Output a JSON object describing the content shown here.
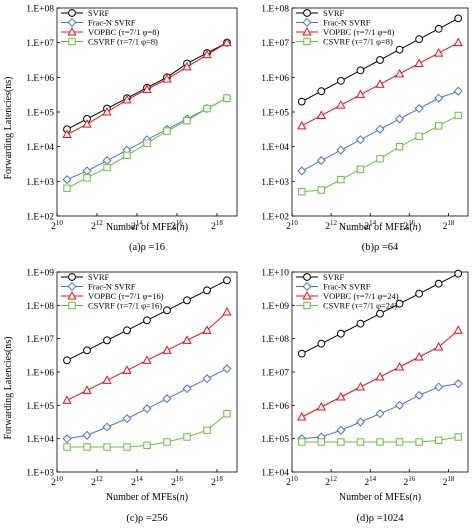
{
  "ylabel": "Forwarding Latencies(ns)",
  "chart_data": [
    {
      "type": "line",
      "caption": "(a)ρ =16",
      "xlabel": "Number of MFEs(n)",
      "x_scale": "log2",
      "y_scale": "log10",
      "xlim": [
        10,
        19
      ],
      "ylim": [
        2,
        8
      ],
      "x_ticks": [
        "2^10",
        "2^12",
        "2^14",
        "2^16",
        "2^18"
      ],
      "y_ticks": [
        "1.E+02",
        "1.E+03",
        "1.E+04",
        "1.E+05",
        "1.E+06",
        "1.E+07",
        "1.E+08"
      ],
      "legend_position": "top-left",
      "x_log2": [
        10.5,
        11.5,
        12.5,
        13.5,
        14.5,
        15.5,
        16.5,
        17.5,
        18.5
      ],
      "series": [
        {
          "name": "SVRF",
          "color": "#000000",
          "marker": "circle",
          "y_log10": [
            4.5,
            4.8,
            5.1,
            5.4,
            5.7,
            6.0,
            6.4,
            6.7,
            7.0
          ]
        },
        {
          "name": "Frac-N SVRF",
          "color": "#4a72c4",
          "marker": "diamond",
          "y_log10": [
            3.05,
            3.3,
            3.6,
            3.9,
            4.2,
            4.5,
            4.8,
            5.1,
            5.4
          ]
        },
        {
          "name": "VOPBC (τ=7/1 φ=8)",
          "color": "#e8101a",
          "marker": "triangle",
          "y_log10": [
            4.35,
            4.65,
            5.0,
            5.35,
            5.65,
            5.95,
            6.3,
            6.65,
            7.0
          ]
        },
        {
          "name": "CSVRF (τ=7/1 φ=8)",
          "color": "#6abf40",
          "marker": "square",
          "y_log10": [
            2.8,
            3.1,
            3.4,
            3.75,
            4.1,
            4.45,
            4.75,
            5.1,
            5.4
          ]
        }
      ]
    },
    {
      "type": "line",
      "caption": "(b)ρ =64",
      "xlabel": "Number of MFEs(n)",
      "x_scale": "log2",
      "y_scale": "log10",
      "xlim": [
        10,
        19
      ],
      "ylim": [
        2,
        8
      ],
      "x_ticks": [
        "2^10",
        "2^12",
        "2^14",
        "2^16",
        "2^18"
      ],
      "y_ticks": [
        "1.E+02",
        "1.E+03",
        "1.E+04",
        "1.E+05",
        "1.E+06",
        "1.E+07",
        "1.E+08"
      ],
      "legend_position": "top-left",
      "x_log2": [
        10.5,
        11.5,
        12.5,
        13.5,
        14.5,
        15.5,
        16.5,
        17.5,
        18.5
      ],
      "series": [
        {
          "name": "SVRF",
          "color": "#000000",
          "marker": "circle",
          "y_log10": [
            5.3,
            5.6,
            5.9,
            6.2,
            6.5,
            6.8,
            7.1,
            7.4,
            7.7
          ]
        },
        {
          "name": "Frac-N SVRF",
          "color": "#4a72c4",
          "marker": "diamond",
          "y_log10": [
            3.3,
            3.6,
            3.9,
            4.2,
            4.5,
            4.8,
            5.1,
            5.4,
            5.6
          ]
        },
        {
          "name": "VOPBC (τ=7/1 φ=8)",
          "color": "#e8101a",
          "marker": "triangle",
          "y_log10": [
            4.6,
            4.9,
            5.2,
            5.5,
            5.8,
            6.1,
            6.4,
            6.7,
            7.0
          ]
        },
        {
          "name": "CSVRF (τ=7/1 φ=8)",
          "color": "#6abf40",
          "marker": "square",
          "y_log10": [
            2.7,
            2.75,
            3.05,
            3.35,
            3.65,
            4.0,
            4.3,
            4.6,
            4.9
          ]
        }
      ]
    },
    {
      "type": "line",
      "caption": "(c)ρ =256",
      "xlabel": "Number of MFEs(n)",
      "x_scale": "log2",
      "y_scale": "log10",
      "xlim": [
        10,
        19
      ],
      "ylim": [
        3,
        9
      ],
      "x_ticks": [
        "2^10",
        "2^12",
        "2^14",
        "2^16",
        "2^18"
      ],
      "y_ticks": [
        "1.E+03",
        "1.E+04",
        "1.E+05",
        "1.E+06",
        "1.E+07",
        "1.E+08",
        "1.E+09"
      ],
      "legend_position": "top-left",
      "x_log2": [
        10.5,
        11.5,
        12.5,
        13.5,
        14.5,
        15.5,
        16.5,
        17.5,
        18.5
      ],
      "series": [
        {
          "name": "SVRF",
          "color": "#000000",
          "marker": "circle",
          "y_log10": [
            6.35,
            6.65,
            6.95,
            7.25,
            7.55,
            7.85,
            8.15,
            8.45,
            8.75
          ]
        },
        {
          "name": "Frac-N SVRF",
          "color": "#4a72c4",
          "marker": "diamond",
          "y_log10": [
            4.0,
            4.1,
            4.35,
            4.6,
            4.9,
            5.2,
            5.5,
            5.8,
            6.1
          ]
        },
        {
          "name": "VOPBC (τ=7/1 φ=16)",
          "color": "#e8101a",
          "marker": "triangle",
          "y_log10": [
            5.15,
            5.45,
            5.75,
            6.05,
            6.35,
            6.65,
            6.95,
            7.25,
            7.8
          ]
        },
        {
          "name": "CSVRF (τ=7/1 φ=16)",
          "color": "#6abf40",
          "marker": "square",
          "y_log10": [
            3.75,
            3.75,
            3.75,
            3.75,
            3.8,
            3.9,
            4.05,
            4.25,
            4.75
          ]
        }
      ]
    },
    {
      "type": "line",
      "caption": "(d)ρ =1024",
      "xlabel": "Number of MFEs(n)",
      "x_scale": "log2",
      "y_scale": "log10",
      "xlim": [
        10,
        19
      ],
      "ylim": [
        4,
        10
      ],
      "x_ticks": [
        "2^10",
        "2^12",
        "2^14",
        "2^16",
        "2^18"
      ],
      "y_ticks": [
        "1.E+04",
        "1.E+05",
        "1.E+06",
        "1.E+07",
        "1.E+08",
        "1.E+09",
        "1.E+10"
      ],
      "legend_position": "top-left",
      "x_log2": [
        10.5,
        11.5,
        12.5,
        13.5,
        14.5,
        15.5,
        16.5,
        17.5,
        18.5
      ],
      "series": [
        {
          "name": "SVRF",
          "color": "#000000",
          "marker": "circle",
          "y_log10": [
            7.55,
            7.85,
            8.15,
            8.45,
            8.75,
            9.05,
            9.35,
            9.65,
            9.95
          ]
        },
        {
          "name": "Frac-N SVRF",
          "color": "#4a72c4",
          "marker": "diamond",
          "y_log10": [
            5.0,
            5.05,
            5.25,
            5.5,
            5.75,
            6.0,
            6.3,
            6.55,
            6.65
          ]
        },
        {
          "name": "VOPBC (τ=7/1 φ=24)",
          "color": "#e8101a",
          "marker": "triangle",
          "y_log10": [
            5.65,
            5.95,
            6.25,
            6.55,
            6.85,
            7.15,
            7.45,
            7.75,
            8.25
          ]
        },
        {
          "name": "CSVRF (τ=7/1 φ=24)",
          "color": "#6abf40",
          "marker": "square",
          "y_log10": [
            4.9,
            4.9,
            4.9,
            4.9,
            4.9,
            4.9,
            4.9,
            4.95,
            5.05
          ]
        }
      ]
    }
  ]
}
